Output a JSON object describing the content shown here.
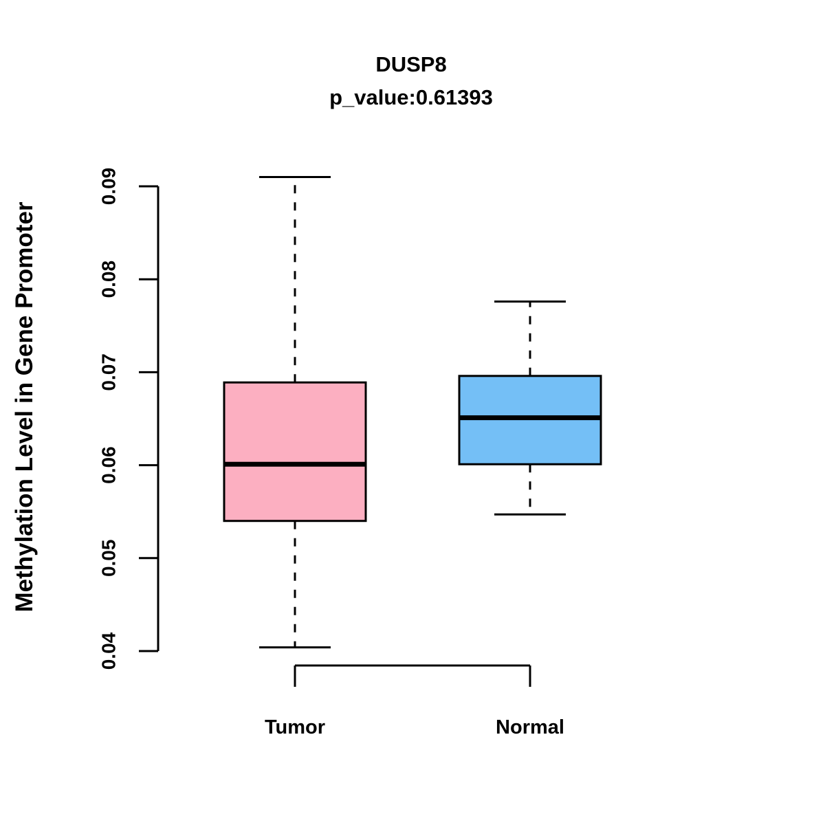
{
  "chart_data": {
    "type": "box",
    "title": "DUSP8",
    "subtitle": "p_value:0.61393",
    "ylabel": "Methylation Level in Gene Promoter",
    "xlabel": "",
    "categories": [
      "Tumor",
      "Normal"
    ],
    "y_ticks": [
      0.04,
      0.05,
      0.06,
      0.07,
      0.08,
      0.09
    ],
    "ylim": [
      0.04,
      0.092
    ],
    "grid": false,
    "legend": "none",
    "series": [
      {
        "name": "Tumor",
        "color": "#FCAFC1",
        "whisker_low": 0.0404,
        "q1": 0.054,
        "median": 0.0601,
        "q3": 0.0689,
        "whisker_high": 0.091
      },
      {
        "name": "Normal",
        "color": "#74BFF6",
        "whisker_low": 0.0547,
        "q1": 0.0601,
        "median": 0.0651,
        "q3": 0.0696,
        "whisker_high": 0.0776
      }
    ],
    "axis_color": "#000000"
  }
}
